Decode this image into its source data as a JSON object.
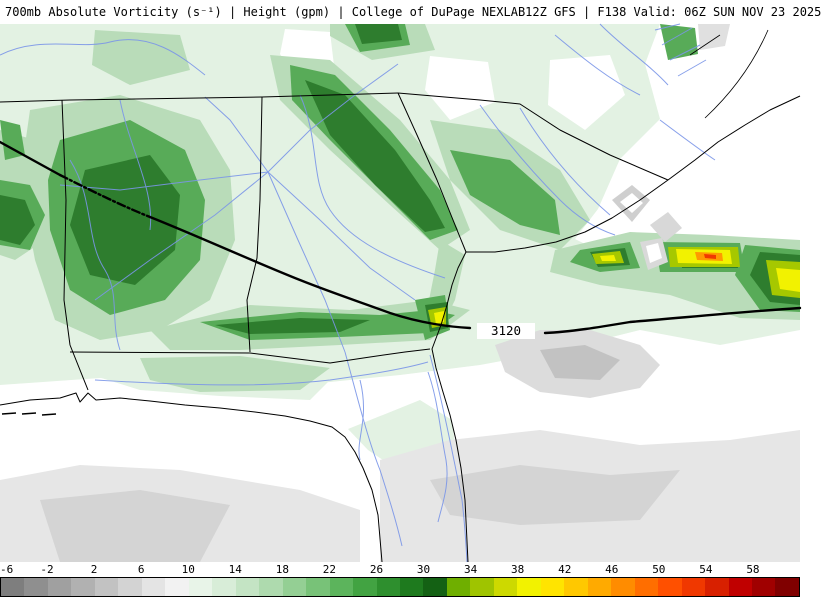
{
  "header": {
    "left": "700mb Absolute Vorticity (s⁻¹) | Height (gpm) | College of DuPage NEXLAB",
    "right": "12Z GFS | F138 Valid: 06Z SUN NOV 23 2025"
  },
  "map": {
    "height_contour_label": "3120"
  },
  "colorbar": {
    "range_min": -6,
    "range_max": 62,
    "step": 2,
    "tick_labels": [
      "-6",
      "-2",
      "2",
      "6",
      "10",
      "14",
      "18",
      "22",
      "26",
      "30",
      "34",
      "38",
      "42",
      "46",
      "50",
      "54",
      "58"
    ],
    "segment_colors": [
      "#7e7e7e",
      "#8f8f8f",
      "#a0a0a0",
      "#b1b1b1",
      "#c2c2c2",
      "#d3d3d3",
      "#e4e4e4",
      "#f2f2f2",
      "#e8f4e8",
      "#d8edd8",
      "#c4e4c4",
      "#aedaae",
      "#94cf94",
      "#78c278",
      "#5cb45c",
      "#42a342",
      "#2e8f2e",
      "#1e7a1e",
      "#146114",
      "#6faf00",
      "#9fc400",
      "#cdd900",
      "#f2f200",
      "#ffe400",
      "#ffc800",
      "#ffaa00",
      "#ff8c00",
      "#ff6e00",
      "#ff5000",
      "#f03800",
      "#d82000",
      "#c00000",
      "#a00000",
      "#800000"
    ]
  }
}
